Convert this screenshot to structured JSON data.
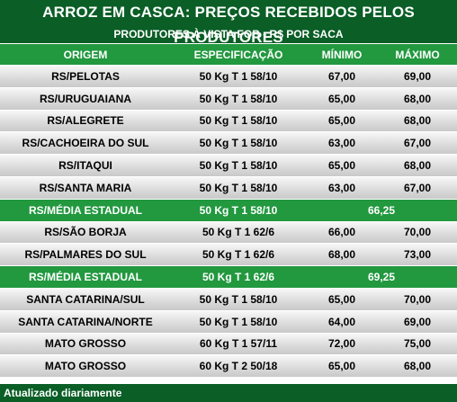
{
  "title": "ARROZ EM CASCA: PREÇOS RECEBIDOS PELOS PRODUTORES",
  "subtitle": "PRODUTORES À VISTA FOB - R$ POR SACA",
  "headers": {
    "origem": "ORIGEM",
    "especificacao": "ESPECIFICAÇÃO",
    "minimo": "MÍNIMO",
    "maximo": "MÁXIMO"
  },
  "rows": [
    {
      "origem": "RS/PELOTAS",
      "spec": "50 Kg T 1 58/10",
      "min": "67,00",
      "max": "69,00"
    },
    {
      "origem": "RS/URUGUAIANA",
      "spec": "50 Kg T 1 58/10",
      "min": "65,00",
      "max": "68,00"
    },
    {
      "origem": "RS/ALEGRETE",
      "spec": "50 Kg T 1 58/10",
      "min": "65,00",
      "max": "68,00"
    },
    {
      "origem": "RS/CACHOEIRA DO SUL",
      "spec": "50 Kg T 1 58/10",
      "min": "63,00",
      "max": "67,00"
    },
    {
      "origem": "RS/ITAQUI",
      "spec": "50 Kg T 1 58/10",
      "min": "65,00",
      "max": "68,00"
    },
    {
      "origem": "RS/SANTA MARIA",
      "spec": "50 Kg T 1 58/10",
      "min": "63,00",
      "max": "67,00"
    }
  ],
  "avg1": {
    "origem": "RS/MÉDIA ESTADUAL",
    "spec": "50 Kg T 1 58/10",
    "value": "66,25"
  },
  "rows2": [
    {
      "origem": "RS/SÃO BORJA",
      "spec": "50 Kg T 1 62/6",
      "min": "66,00",
      "max": "70,00"
    },
    {
      "origem": "RS/PALMARES DO SUL",
      "spec": "50 Kg T 1 62/6",
      "min": "68,00",
      "max": "73,00"
    }
  ],
  "avg2": {
    "origem": "RS/MÉDIA ESTADUAL",
    "spec": "50 Kg T 1 62/6",
    "value": "69,25"
  },
  "rows3": [
    {
      "origem": "SANTA CATARINA/SUL",
      "spec": "50 Kg T 1 58/10",
      "min": "65,00",
      "max": "70,00"
    },
    {
      "origem": "SANTA CATARINA/NORTE",
      "spec": "50 Kg T 1 58/10",
      "min": "64,00",
      "max": "69,00"
    },
    {
      "origem": "MATO GROSSO",
      "spec": "60 Kg T 1 57/11",
      "min": "72,00",
      "max": "75,00"
    },
    {
      "origem": "MATO GROSSO",
      "spec": "60 Kg T 2 50/18",
      "min": "65,00",
      "max": "68,00"
    }
  ],
  "footer": "Atualizado diariamente"
}
